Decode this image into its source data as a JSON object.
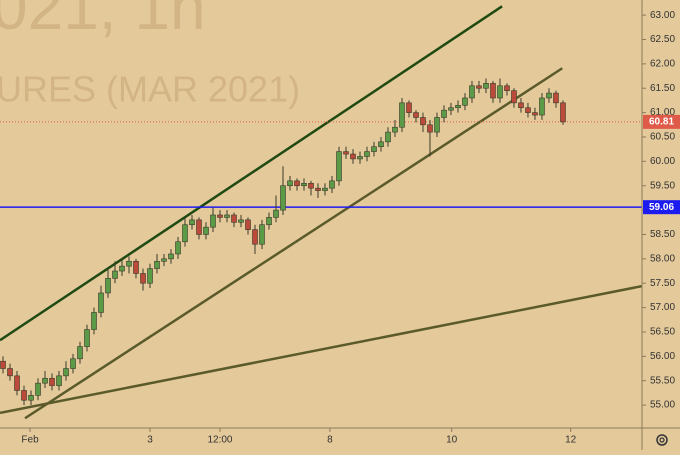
{
  "chart_data": {
    "type": "candlestick",
    "watermark": [
      "021, 1h",
      "URES (MAR 2021)"
    ],
    "open": [
      55.9,
      55.75,
      55.6,
      55.3,
      55.1,
      55.2,
      55.45,
      55.55,
      55.4,
      55.6,
      55.75,
      55.95,
      56.2,
      56.55,
      56.9,
      57.3,
      57.6,
      57.75,
      57.85,
      57.95,
      57.7,
      57.5,
      57.8,
      57.95,
      58.0,
      58.1,
      58.35,
      58.7,
      58.8,
      58.5,
      58.65,
      58.9,
      58.85,
      58.9,
      58.75,
      58.8,
      58.6,
      58.3,
      58.7,
      58.85,
      59.0,
      59.5,
      59.6,
      59.5,
      59.55,
      59.45,
      59.4,
      59.45,
      59.6,
      60.2,
      60.15,
      60.05,
      60.1,
      60.2,
      60.3,
      60.4,
      60.6,
      60.7,
      61.2,
      61.0,
      60.9,
      60.75,
      60.6,
      60.9,
      61.05,
      61.1,
      61.15,
      61.3,
      61.55,
      61.5,
      61.6,
      61.3,
      61.55,
      61.45,
      61.2,
      61.1,
      61.0,
      60.95,
      61.3,
      61.4,
      61.2
    ],
    "high": [
      56.0,
      55.85,
      55.7,
      55.4,
      55.3,
      55.55,
      55.7,
      55.65,
      55.7,
      55.9,
      56.05,
      56.3,
      56.65,
      57.0,
      57.45,
      57.8,
      57.95,
      58.0,
      58.05,
      58.0,
      57.8,
      57.9,
      58.1,
      58.1,
      58.2,
      58.45,
      58.85,
      58.9,
      58.85,
      58.75,
      59.05,
      59.0,
      59.0,
      58.95,
      58.9,
      58.85,
      58.7,
      58.8,
      58.95,
      59.3,
      59.9,
      59.7,
      59.65,
      59.65,
      59.6,
      59.55,
      59.55,
      59.7,
      60.3,
      60.3,
      60.25,
      60.2,
      60.3,
      60.4,
      60.5,
      60.7,
      60.85,
      61.3,
      61.25,
      61.05,
      61.0,
      60.85,
      61.0,
      61.15,
      61.2,
      61.25,
      61.4,
      61.65,
      61.65,
      61.7,
      61.65,
      61.7,
      61.6,
      61.5,
      61.3,
      61.2,
      61.1,
      61.4,
      61.5,
      61.45,
      61.25
    ],
    "low": [
      55.65,
      55.5,
      55.2,
      55.0,
      55.0,
      55.1,
      55.35,
      55.3,
      55.3,
      55.5,
      55.65,
      55.85,
      56.1,
      56.45,
      56.8,
      57.2,
      57.5,
      57.65,
      57.7,
      57.6,
      57.35,
      57.4,
      57.7,
      57.85,
      57.9,
      58.0,
      58.25,
      58.6,
      58.4,
      58.4,
      58.55,
      58.75,
      58.75,
      58.65,
      58.65,
      58.5,
      58.1,
      58.2,
      58.6,
      58.75,
      58.9,
      59.4,
      59.4,
      59.4,
      59.3,
      59.25,
      59.3,
      59.35,
      59.5,
      60.05,
      59.95,
      59.95,
      60.0,
      60.1,
      60.2,
      60.3,
      60.5,
      60.6,
      60.9,
      60.8,
      60.6,
      60.1,
      60.5,
      60.8,
      60.95,
      61.0,
      61.05,
      61.2,
      61.4,
      61.4,
      61.2,
      61.2,
      61.35,
      61.1,
      61.0,
      60.9,
      60.85,
      60.85,
      61.2,
      61.1,
      60.75
    ],
    "close": [
      55.75,
      55.6,
      55.3,
      55.1,
      55.2,
      55.45,
      55.55,
      55.4,
      55.6,
      55.75,
      55.95,
      56.2,
      56.55,
      56.9,
      57.3,
      57.6,
      57.75,
      57.85,
      57.95,
      57.7,
      57.5,
      57.8,
      57.95,
      58.0,
      58.1,
      58.35,
      58.7,
      58.8,
      58.5,
      58.65,
      58.9,
      58.85,
      58.9,
      58.75,
      58.8,
      58.6,
      58.3,
      58.7,
      58.85,
      59.0,
      59.5,
      59.6,
      59.5,
      59.55,
      59.45,
      59.4,
      59.45,
      59.6,
      60.2,
      60.15,
      60.05,
      60.1,
      60.2,
      60.3,
      60.4,
      60.6,
      60.7,
      61.2,
      61.0,
      60.9,
      60.75,
      60.6,
      60.9,
      61.05,
      61.1,
      61.15,
      61.3,
      61.55,
      61.5,
      61.6,
      61.3,
      61.55,
      61.45,
      61.2,
      61.1,
      61.0,
      60.95,
      61.3,
      61.4,
      61.2,
      60.81
    ],
    "up_color": "#5b9a47",
    "down_color": "#bb4a3b",
    "xlim": [
      -0.43,
      91.29
    ],
    "xticks": [
      {
        "value": 3.86,
        "label": "Feb"
      },
      {
        "value": 21,
        "label": "3"
      },
      {
        "value": 31,
        "label": "12:00"
      },
      {
        "value": 46.7,
        "label": "8"
      },
      {
        "value": 64.1,
        "label": "10"
      },
      {
        "value": 81.1,
        "label": "12"
      }
    ],
    "ylim": [
      54.53,
      63.31
    ],
    "yticks": [
      {
        "value": 55,
        "label": "55.00"
      },
      {
        "value": 55.5,
        "label": "55.50"
      },
      {
        "value": 56,
        "label": "56.00"
      },
      {
        "value": 56.5,
        "label": "56.50"
      },
      {
        "value": 57,
        "label": "57.00"
      },
      {
        "value": 57.5,
        "label": "57.50"
      },
      {
        "value": 58,
        "label": "58.00"
      },
      {
        "value": 58.5,
        "label": "58.50"
      },
      {
        "value": 59,
        "label": "59.00"
      },
      {
        "value": 59.5,
        "label": "59.50"
      },
      {
        "value": 60,
        "label": "60.00"
      },
      {
        "value": 60.5,
        "label": "60.50"
      },
      {
        "value": 61,
        "label": "61.00"
      },
      {
        "value": 61.5,
        "label": "61.50"
      },
      {
        "value": 62,
        "label": "62.00"
      },
      {
        "value": 62.5,
        "label": "62.50"
      },
      {
        "value": 63,
        "label": "63.00"
      }
    ],
    "trendlines": [
      {
        "x": [
          -0.43,
          71.3
        ],
        "y": [
          56.33,
          63.18
        ],
        "color": "#1f4a12"
      },
      {
        "x": [
          3.14,
          79.9
        ],
        "y": [
          54.73,
          61.91
        ],
        "color": "#5a5a2a"
      },
      {
        "x": [
          -0.43,
          91.29
        ],
        "y": [
          54.84,
          57.44
        ],
        "color": "#5a5a2a"
      }
    ],
    "hline": {
      "value": 59.06,
      "label": "59.06",
      "color": "#1c1cf0"
    },
    "last_price": {
      "value": 60.81,
      "label": "60.81",
      "color": "#e05a4a"
    }
  }
}
